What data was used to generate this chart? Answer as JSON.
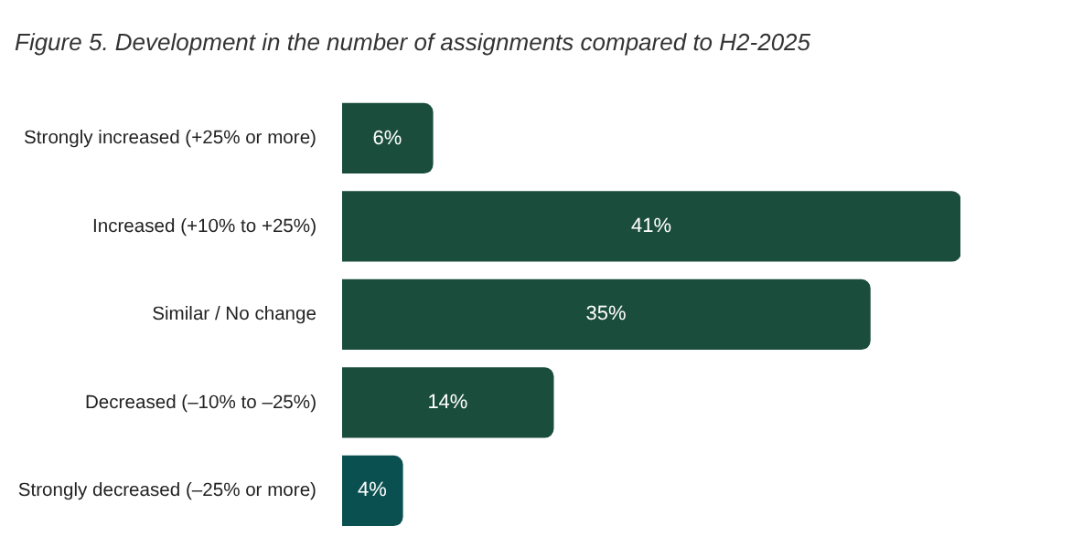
{
  "chart_data": {
    "type": "bar",
    "orientation": "horizontal",
    "title": "Figure 5. Development in the number of assignments compared to H2-2025",
    "categories": [
      "Strongly increased (+25% or more)",
      "Increased (+10% to +25%)",
      "Similar / No change",
      "Decreased (–10% to –25%)",
      "Strongly decreased (–25% or more)"
    ],
    "values": [
      6,
      41,
      35,
      14,
      4
    ],
    "colors": [
      "#1a4d3c",
      "#1a4d3c",
      "#1a4d3c",
      "#1a4d3c",
      "#0b5050"
    ],
    "value_labels": [
      "6%",
      "41%",
      "35%",
      "14%",
      "4%"
    ],
    "legend": false
  }
}
